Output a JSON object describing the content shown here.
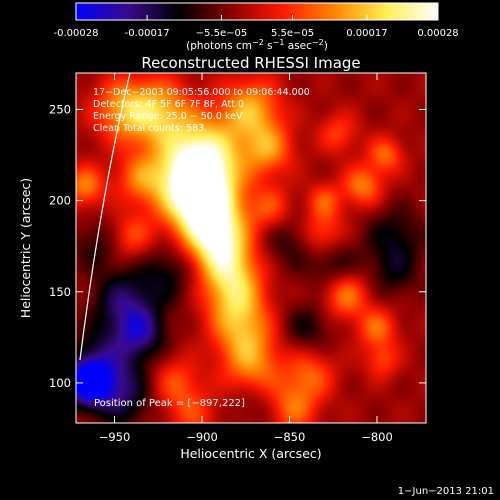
{
  "colorbar": {
    "ticks": [
      {
        "v": -0.00028,
        "label": "-0.00028"
      },
      {
        "v": -0.00017,
        "label": "-0.00017"
      },
      {
        "v": -5.5e-05,
        "label": "−5.5e−05"
      },
      {
        "v": 5.5e-05,
        "label": "5.5e−05"
      },
      {
        "v": 0.00017,
        "label": "0.00017"
      },
      {
        "v": 0.00028,
        "label": "0.00028"
      }
    ],
    "range": [
      -0.00028,
      0.00028
    ],
    "units_prefix": "(photons cm",
    "units_exp1": "−2",
    "units_mid": " s",
    "units_exp2": "−1",
    "units_mid2": " asec",
    "units_exp3": "−2",
    "units_suffix": ")",
    "colormap": [
      "#0000ff",
      "#3a0a8c",
      "#000000",
      "#8c0000",
      "#ff1a00",
      "#ff8800",
      "#ffee55",
      "#ffffff"
    ]
  },
  "title": "Reconstructed RHESSI Image",
  "info": {
    "line1": "17−Dec−2003 09:05:56.000 to 09:06:44.000",
    "line2": "Detectors: 4F 5F 6F 7F 8F, Att 0",
    "line3": "Energy Range: 25.0 − 50.0 keV",
    "line4": "Clean     Total counts: 583."
  },
  "peak_label": "Position of Peak = [−897,222]",
  "footer_date": "1−Jun−2013 21:01",
  "chart_data": {
    "type": "heatmap",
    "title": "Reconstructed RHESSI Image",
    "xlabel": "Heliocentric X (arcsec)",
    "ylabel": "Heliocentric Y (arcsec)",
    "xlim": [
      -972,
      -772
    ],
    "ylim": [
      78,
      270
    ],
    "xticks": [
      {
        "v": -950,
        "label": "−950"
      },
      {
        "v": -900,
        "label": "−900"
      },
      {
        "v": -850,
        "label": "−850"
      },
      {
        "v": -800,
        "label": "−800"
      }
    ],
    "yticks": [
      {
        "v": 100,
        "label": "100"
      },
      {
        "v": 150,
        "label": "150"
      },
      {
        "v": 200,
        "label": "200"
      },
      {
        "v": 250,
        "label": "250"
      }
    ],
    "peak": [
      -897,
      222
    ],
    "sources": [
      {
        "x": -900,
        "y": 222,
        "v": 0.00028,
        "r": 16
      },
      {
        "x": -905,
        "y": 205,
        "v": 0.00024,
        "r": 14
      },
      {
        "x": -895,
        "y": 190,
        "v": 0.0002,
        "r": 13
      },
      {
        "x": -890,
        "y": 175,
        "v": 0.00018,
        "r": 12
      },
      {
        "x": -883,
        "y": 158,
        "v": 0.00016,
        "r": 12
      },
      {
        "x": -880,
        "y": 140,
        "v": 0.00014,
        "r": 12
      },
      {
        "x": -875,
        "y": 122,
        "v": 0.00012,
        "r": 12
      },
      {
        "x": -870,
        "y": 105,
        "v": 0.00011,
        "r": 12
      },
      {
        "x": -925,
        "y": 248,
        "v": 0.00017,
        "r": 13
      },
      {
        "x": -945,
        "y": 250,
        "v": 0.00015,
        "r": 12
      },
      {
        "x": -872,
        "y": 250,
        "v": 0.00017,
        "r": 12
      },
      {
        "x": -862,
        "y": 228,
        "v": 0.00014,
        "r": 10
      },
      {
        "x": -935,
        "y": 212,
        "v": 0.00012,
        "r": 10
      },
      {
        "x": -940,
        "y": 180,
        "v": 0.0001,
        "r": 9
      },
      {
        "x": -860,
        "y": 195,
        "v": 0.00011,
        "r": 9
      },
      {
        "x": -832,
        "y": 182,
        "v": 0.00012,
        "r": 9
      },
      {
        "x": -830,
        "y": 200,
        "v": 0.0001,
        "r": 7
      },
      {
        "x": -822,
        "y": 237,
        "v": 9e-05,
        "r": 8
      },
      {
        "x": -808,
        "y": 208,
        "v": 0.00014,
        "r": 8
      },
      {
        "x": -795,
        "y": 225,
        "v": 0.00012,
        "r": 7
      },
      {
        "x": -818,
        "y": 148,
        "v": 0.00014,
        "r": 9
      },
      {
        "x": -800,
        "y": 130,
        "v": 0.00012,
        "r": 8
      },
      {
        "x": -797,
        "y": 112,
        "v": 9e-05,
        "r": 7
      },
      {
        "x": -838,
        "y": 105,
        "v": 0.00011,
        "r": 10
      },
      {
        "x": -848,
        "y": 86,
        "v": 0.00012,
        "r": 10
      },
      {
        "x": -915,
        "y": 100,
        "v": 0.0001,
        "r": 10
      },
      {
        "x": -905,
        "y": 82,
        "v": 8e-05,
        "r": 10
      },
      {
        "x": -967,
        "y": 208,
        "v": 0.00014,
        "r": 8
      },
      {
        "x": -920,
        "y": 160,
        "v": -9e-05,
        "r": 12
      },
      {
        "x": -945,
        "y": 145,
        "v": -0.00013,
        "r": 12
      },
      {
        "x": -935,
        "y": 128,
        "v": -0.00015,
        "r": 10
      },
      {
        "x": -955,
        "y": 112,
        "v": -0.00012,
        "r": 14
      },
      {
        "x": -965,
        "y": 100,
        "v": -0.00026,
        "r": 9
      },
      {
        "x": -945,
        "y": 92,
        "v": -0.00011,
        "r": 12
      },
      {
        "x": -850,
        "y": 180,
        "v": -8e-05,
        "r": 12
      },
      {
        "x": -825,
        "y": 165,
        "v": -8e-05,
        "r": 10
      },
      {
        "x": -790,
        "y": 180,
        "v": -9e-05,
        "r": 12
      },
      {
        "x": -840,
        "y": 130,
        "v": -8e-05,
        "r": 10
      },
      {
        "x": -790,
        "y": 160,
        "v": -7e-05,
        "r": 10
      },
      {
        "x": -960,
        "y": 175,
        "v": -7e-05,
        "r": 10
      },
      {
        "x": -870,
        "y": 90,
        "v": -6e-05,
        "r": 10
      }
    ]
  }
}
